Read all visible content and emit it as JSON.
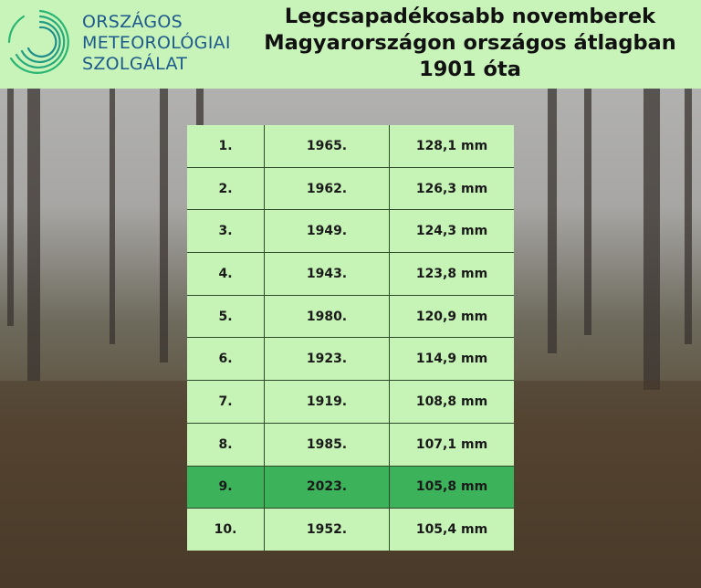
{
  "logo": {
    "lines": [
      "ORSZÁGOS",
      "METEOROLÓGIAI",
      "SZOLGÁLAT"
    ],
    "colors": [
      "#2ab573",
      "#1e5a8c"
    ]
  },
  "title": {
    "lines": [
      "Legcsapadékosabb novemberek",
      "Magyarországon országos átlagban",
      "1901 óta"
    ]
  },
  "table": {
    "highlight_color": "#3cb35a",
    "rows": [
      {
        "rank": "1.",
        "year": "1965.",
        "value": "128,1 mm",
        "highlight": false
      },
      {
        "rank": "2.",
        "year": "1962.",
        "value": "126,3 mm",
        "highlight": false
      },
      {
        "rank": "3.",
        "year": "1949.",
        "value": "124,3 mm",
        "highlight": false
      },
      {
        "rank": "4.",
        "year": "1943.",
        "value": "123,8 mm",
        "highlight": false
      },
      {
        "rank": "5.",
        "year": "1980.",
        "value": "120,9 mm",
        "highlight": false
      },
      {
        "rank": "6.",
        "year": "1923.",
        "value": "114,9 mm",
        "highlight": false
      },
      {
        "rank": "7.",
        "year": "1919.",
        "value": "108,8 mm",
        "highlight": false
      },
      {
        "rank": "8.",
        "year": "1985.",
        "value": "107,1 mm",
        "highlight": false
      },
      {
        "rank": "9.",
        "year": "2023.",
        "value": "105,8 mm",
        "highlight": true
      },
      {
        "rank": "10.",
        "year": "1952.",
        "value": "105,4 mm",
        "highlight": false
      }
    ]
  }
}
